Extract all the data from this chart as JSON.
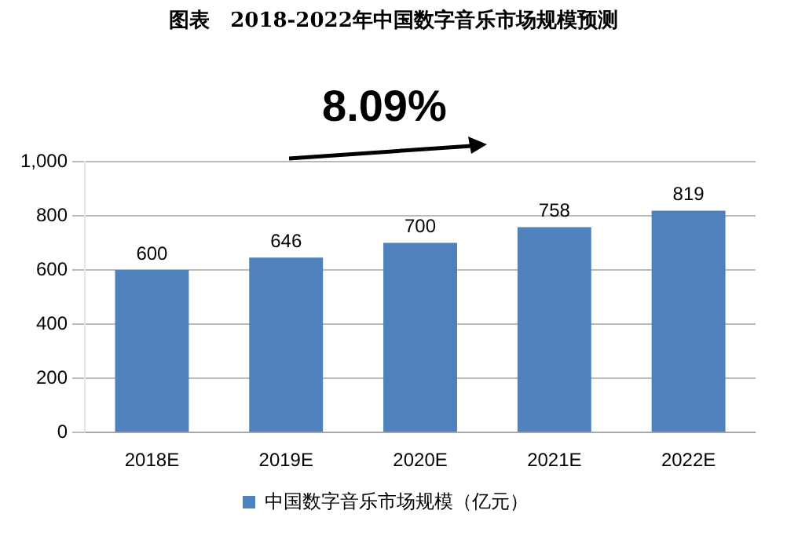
{
  "chart_data": {
    "type": "bar",
    "title": "图表　2018-2022年中国数字音乐市场规模预测",
    "categories": [
      "2018E",
      "2019E",
      "2020E",
      "2021E",
      "2022E"
    ],
    "series": [
      {
        "name": "中国数字音乐市场规模（亿元）",
        "color": "#4f81bd",
        "values": [
          600,
          646,
          700,
          758,
          819
        ]
      }
    ],
    "ylim": [
      0,
      1000
    ],
    "yticks": [
      0,
      200,
      400,
      600,
      800,
      {
        "value": 1000,
        "label": "1,000"
      }
    ],
    "grid": "y",
    "legend": "bottom",
    "data_labels": true,
    "annotations": [
      "8.09%"
    ]
  }
}
